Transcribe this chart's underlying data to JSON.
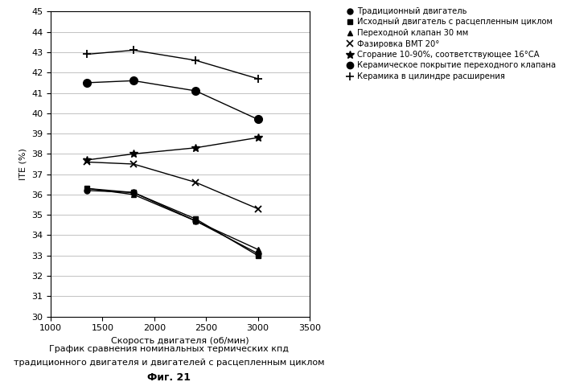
{
  "x_values": [
    1350,
    1800,
    2400,
    3000
  ],
  "series": [
    {
      "label": "Традиционный двигатель",
      "marker": "o",
      "markersize": 5,
      "color": "black",
      "linewidth": 1.0,
      "y": [
        36.2,
        36.1,
        34.7,
        33.1
      ]
    },
    {
      "label": "Исходный двигатель с расцепленным циклом",
      "marker": "s",
      "markersize": 5,
      "color": "black",
      "linewidth": 1.0,
      "y": [
        36.3,
        36.1,
        34.8,
        33.0
      ]
    },
    {
      "label": "Переходной клапан 30 мм",
      "marker": "^",
      "markersize": 5,
      "color": "black",
      "linewidth": 1.0,
      "y": [
        36.3,
        36.0,
        34.7,
        33.3
      ]
    },
    {
      "label": "Фазировка ВМТ 20°",
      "marker": "x",
      "markersize": 6,
      "color": "black",
      "linewidth": 1.0,
      "y": [
        37.6,
        37.5,
        36.6,
        35.3
      ]
    },
    {
      "label": "Сгорание 10-90%, соответствующее 16°СА",
      "marker": "*",
      "markersize": 7,
      "color": "black",
      "linewidth": 1.0,
      "y": [
        37.7,
        38.0,
        38.3,
        38.8
      ]
    },
    {
      "label": "Керамическое покрытие переходного клапана",
      "marker": "o",
      "markersize": 7,
      "color": "black",
      "linewidth": 1.0,
      "y": [
        41.5,
        41.6,
        41.1,
        39.7
      ]
    },
    {
      "label": "Керамика в цилиндре расширения",
      "marker": "+",
      "markersize": 7,
      "color": "black",
      "linewidth": 1.0,
      "y": [
        42.9,
        43.1,
        42.6,
        41.7
      ]
    }
  ],
  "xlabel": "Скорость двигателя (об/мин)",
  "ylabel": "IТЕ (%)",
  "xlim": [
    1000,
    3500
  ],
  "ylim": [
    30,
    45
  ],
  "xticks": [
    1000,
    1500,
    2000,
    2500,
    3000,
    3500
  ],
  "yticks": [
    30,
    31,
    32,
    33,
    34,
    35,
    36,
    37,
    38,
    39,
    40,
    41,
    42,
    43,
    44,
    45
  ],
  "caption_line1": "График сравнения номинальных термических кпд",
  "caption_line2": "традиционного двигателя и двигателей с расцепленным циклом",
  "caption_bold": "Фиг. 21",
  "bg_color": "#ffffff"
}
